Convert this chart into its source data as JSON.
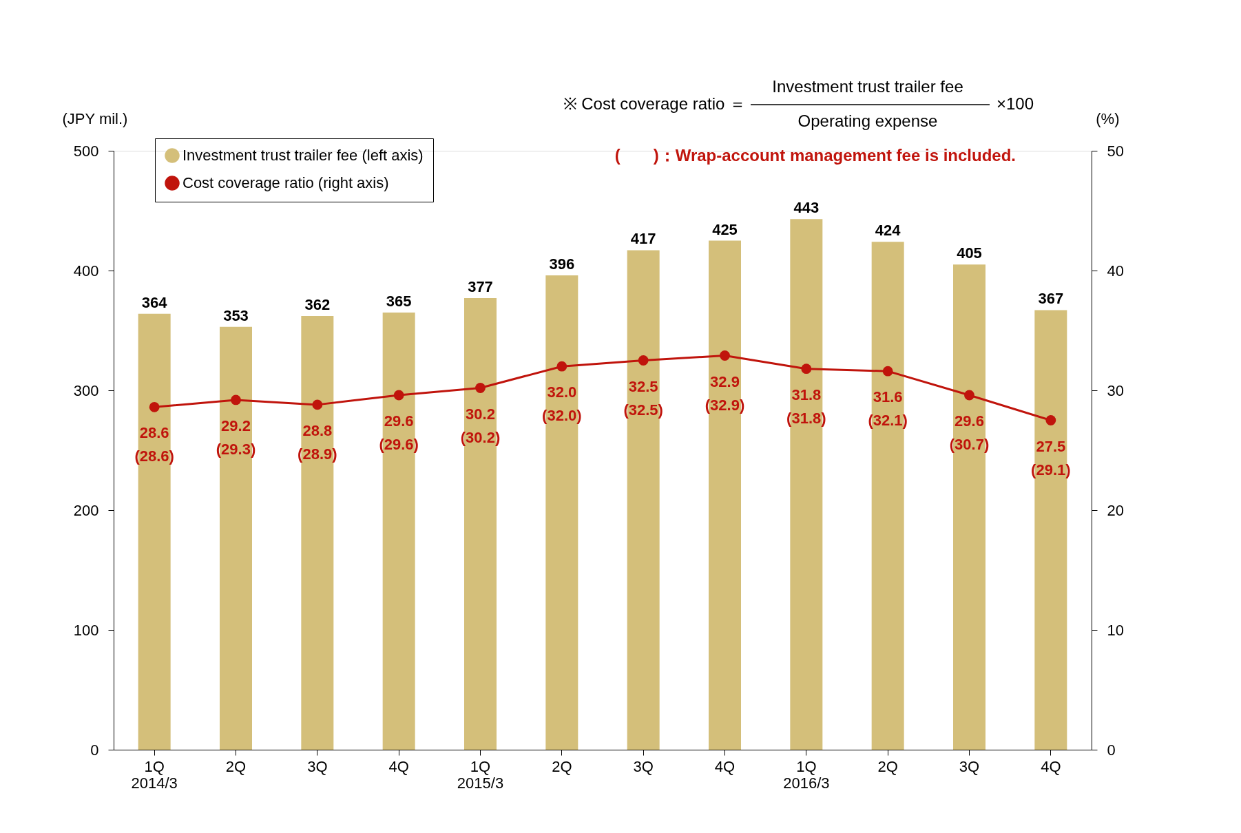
{
  "chart_data": {
    "type": "bar",
    "categories": [
      "1Q\n2014/3",
      "2Q",
      "3Q",
      "4Q",
      "1Q\n2015/3",
      "2Q",
      "3Q",
      "4Q",
      "1Q\n2016/3",
      "2Q",
      "3Q",
      "4Q"
    ],
    "series": [
      {
        "name": "Investment trust trailer fee (left axis)",
        "color": "#d4bf7a",
        "values": [
          364,
          353,
          362,
          365,
          377,
          396,
          417,
          425,
          443,
          424,
          405,
          367
        ],
        "data_labels": true
      },
      {
        "name": "Cost coverage ratio (right axis)",
        "type": "line",
        "axis": "y2",
        "color": "#c0140c",
        "marker": "circle",
        "values": [
          28.6,
          29.2,
          28.8,
          29.6,
          30.2,
          32.0,
          32.5,
          32.9,
          31.8,
          31.6,
          29.6,
          27.5
        ],
        "value_labels": [
          "28.6\n(28.6)",
          "29.2\n(29.3)",
          "28.8\n(28.9)",
          "29.6\n(29.6)",
          "30.2\n(30.2)",
          "32.0\n(32.0)",
          "32.5\n(32.5)",
          "32.9\n(32.9)",
          "31.8\n(31.8)",
          "31.6\n(32.1)",
          "29.6\n(30.7)",
          "27.5\n(29.1)"
        ]
      }
    ],
    "ylabel": "(JPY mil.)",
    "y2label": "(%)",
    "ylim": [
      0,
      500
    ],
    "yticks": [
      0,
      100,
      200,
      300,
      400,
      500
    ],
    "y2lim": [
      0,
      50
    ],
    "y2ticks": [
      0,
      10,
      20,
      30,
      40,
      50
    ],
    "legend": "top left",
    "grid": false,
    "annotations": [
      "※  Cost coverage ratio ＝",
      "Investment  trust trailer fee",
      "Operating expense",
      "×100",
      "(　　)：Wrap-account management fee is included."
    ]
  }
}
